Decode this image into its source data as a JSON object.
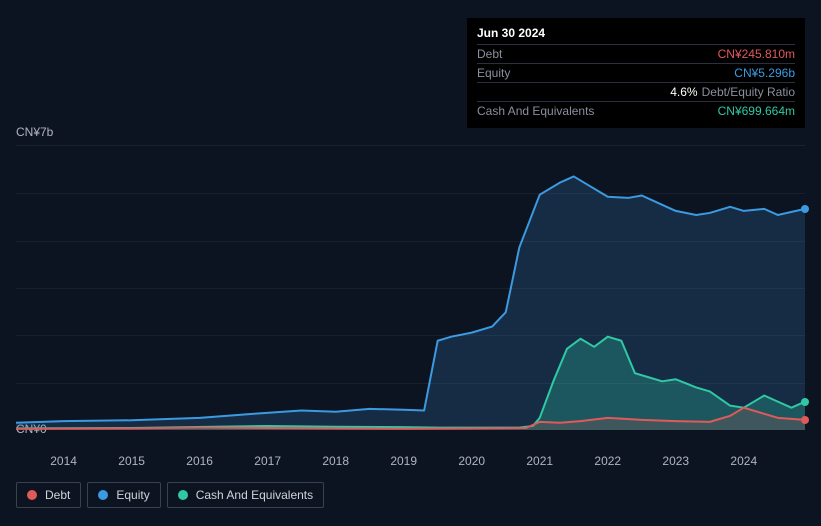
{
  "tooltip": {
    "date": "Jun 30 2024",
    "debt_label": "Debt",
    "debt_value": "CN¥245.810m",
    "equity_label": "Equity",
    "equity_value": "CN¥5.296b",
    "ratio_value": "4.6%",
    "ratio_label": "Debt/Equity Ratio",
    "cash_label": "Cash And Equivalents",
    "cash_value": "CN¥699.664m"
  },
  "chart": {
    "y_top": "CN¥7b",
    "y_bottom": "CN¥0",
    "y_domain": [
      0,
      7
    ],
    "x_years": [
      2014,
      2015,
      2016,
      2017,
      2018,
      2019,
      2020,
      2021,
      2022,
      2023,
      2024
    ],
    "x_domain": [
      2013.3,
      2024.9
    ],
    "grid_count": 5,
    "colors": {
      "debt": "#e05a5a",
      "equity": "#3b9ae1",
      "cash": "#2fc9a5",
      "equity_fill": "rgba(59,154,225,0.18)",
      "cash_fill": "rgba(47,201,165,0.28)",
      "debt_fill": "rgba(224,90,90,0.18)"
    },
    "series": {
      "equity": [
        [
          2013.3,
          0.18
        ],
        [
          2014,
          0.22
        ],
        [
          2015,
          0.24
        ],
        [
          2016,
          0.3
        ],
        [
          2016.8,
          0.4
        ],
        [
          2017.5,
          0.48
        ],
        [
          2018,
          0.45
        ],
        [
          2018.5,
          0.52
        ],
        [
          2019,
          0.5
        ],
        [
          2019.3,
          0.48
        ],
        [
          2019.5,
          2.2
        ],
        [
          2019.7,
          2.3
        ],
        [
          2020,
          2.4
        ],
        [
          2020.3,
          2.55
        ],
        [
          2020.5,
          2.9
        ],
        [
          2020.7,
          4.5
        ],
        [
          2021,
          5.8
        ],
        [
          2021.3,
          6.1
        ],
        [
          2021.5,
          6.25
        ],
        [
          2021.7,
          6.05
        ],
        [
          2022,
          5.75
        ],
        [
          2022.3,
          5.72
        ],
        [
          2022.5,
          5.78
        ],
        [
          2022.8,
          5.55
        ],
        [
          2023,
          5.4
        ],
        [
          2023.3,
          5.3
        ],
        [
          2023.5,
          5.35
        ],
        [
          2023.8,
          5.5
        ],
        [
          2024,
          5.4
        ],
        [
          2024.3,
          5.45
        ],
        [
          2024.5,
          5.3
        ],
        [
          2024.9,
          5.45
        ]
      ],
      "cash": [
        [
          2013.3,
          0.04
        ],
        [
          2015,
          0.05
        ],
        [
          2017,
          0.1
        ],
        [
          2018,
          0.08
        ],
        [
          2019,
          0.07
        ],
        [
          2019.5,
          0.06
        ],
        [
          2020,
          0.06
        ],
        [
          2020.5,
          0.06
        ],
        [
          2020.7,
          0.06
        ],
        [
          2020.9,
          0.1
        ],
        [
          2021,
          0.3
        ],
        [
          2021.2,
          1.2
        ],
        [
          2021.4,
          2.0
        ],
        [
          2021.6,
          2.25
        ],
        [
          2021.8,
          2.05
        ],
        [
          2022,
          2.3
        ],
        [
          2022.2,
          2.2
        ],
        [
          2022.4,
          1.4
        ],
        [
          2022.6,
          1.3
        ],
        [
          2022.8,
          1.2
        ],
        [
          2023,
          1.25
        ],
        [
          2023.3,
          1.05
        ],
        [
          2023.5,
          0.95
        ],
        [
          2023.8,
          0.6
        ],
        [
          2024,
          0.55
        ],
        [
          2024.3,
          0.85
        ],
        [
          2024.5,
          0.7
        ],
        [
          2024.7,
          0.55
        ],
        [
          2024.9,
          0.7
        ]
      ],
      "debt": [
        [
          2013.3,
          0.03
        ],
        [
          2015,
          0.04
        ],
        [
          2016,
          0.06
        ],
        [
          2017,
          0.05
        ],
        [
          2018,
          0.04
        ],
        [
          2019,
          0.03
        ],
        [
          2020,
          0.04
        ],
        [
          2020.8,
          0.05
        ],
        [
          2021,
          0.2
        ],
        [
          2021.3,
          0.18
        ],
        [
          2021.6,
          0.22
        ],
        [
          2022,
          0.3
        ],
        [
          2022.5,
          0.25
        ],
        [
          2023,
          0.22
        ],
        [
          2023.5,
          0.2
        ],
        [
          2023.8,
          0.35
        ],
        [
          2024,
          0.55
        ],
        [
          2024.3,
          0.4
        ],
        [
          2024.5,
          0.3
        ],
        [
          2024.9,
          0.25
        ]
      ]
    }
  },
  "legend": {
    "debt": "Debt",
    "equity": "Equity",
    "cash": "Cash And Equivalents"
  }
}
